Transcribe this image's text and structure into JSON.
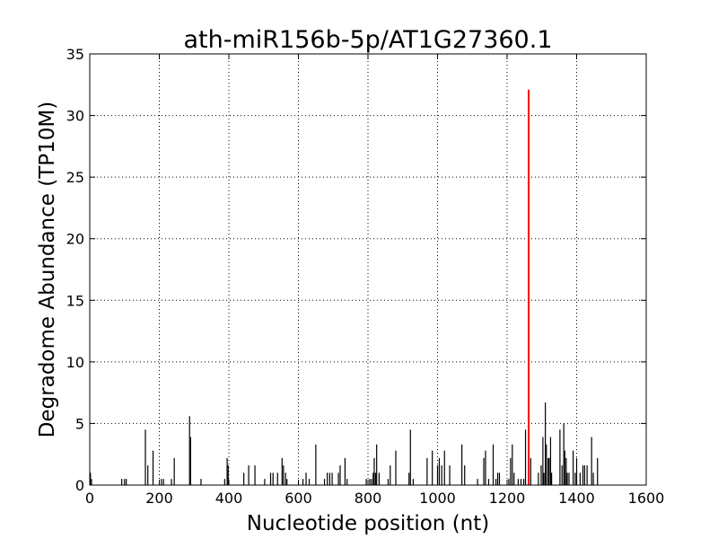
{
  "chart_data": {
    "type": "bar",
    "title": "ath-miR156b-5p/AT1G27360.1",
    "xlabel": "Nucleotide position (nt)",
    "ylabel": "Degradome Abundance (TP10M)",
    "xlim": [
      0,
      1600
    ],
    "ylim": [
      0,
      35
    ],
    "xticks": [
      "0",
      "200",
      "400",
      "600",
      "800",
      "1000",
      "1200",
      "1400",
      "1600"
    ],
    "yticks": [
      "0",
      "5",
      "10",
      "15",
      "20",
      "25",
      "30",
      "35"
    ],
    "grid": true,
    "colors": {
      "bars": "#000000",
      "highlight": "#ff0000",
      "grid": "#000000"
    },
    "series": [
      {
        "points": [
          [
            2,
            1.0
          ],
          [
            5,
            0.5
          ],
          [
            92,
            0.5
          ],
          [
            100,
            0.5
          ],
          [
            105,
            0.5
          ],
          [
            160,
            4.5
          ],
          [
            167,
            1.6
          ],
          [
            182,
            2.8
          ],
          [
            206,
            0.5
          ],
          [
            212,
            0.5
          ],
          [
            235,
            0.5
          ],
          [
            243,
            2.2
          ],
          [
            287,
            5.6
          ],
          [
            290,
            3.9
          ],
          [
            320,
            0.5
          ],
          [
            388,
            0.5
          ],
          [
            395,
            2.2
          ],
          [
            398,
            1.6
          ],
          [
            443,
            1.0
          ],
          [
            457,
            1.6
          ],
          [
            475,
            1.6
          ],
          [
            503,
            0.5
          ],
          [
            520,
            1.0
          ],
          [
            527,
            1.0
          ],
          [
            540,
            1.0
          ],
          [
            553,
            2.2
          ],
          [
            557,
            1.6
          ],
          [
            563,
            1.0
          ],
          [
            567,
            0.5
          ],
          [
            613,
            0.5
          ],
          [
            622,
            1.0
          ],
          [
            631,
            0.5
          ],
          [
            650,
            3.3
          ],
          [
            675,
            0.5
          ],
          [
            683,
            1.0
          ],
          [
            690,
            1.0
          ],
          [
            697,
            1.0
          ],
          [
            715,
            1.0
          ],
          [
            720,
            1.6
          ],
          [
            734,
            2.2
          ],
          [
            740,
            0.5
          ],
          [
            795,
            0.5
          ],
          [
            805,
            0.5
          ],
          [
            810,
            0.5
          ],
          [
            815,
            1.0
          ],
          [
            818,
            2.2
          ],
          [
            822,
            1.0
          ],
          [
            825,
            3.3
          ],
          [
            832,
            1.0
          ],
          [
            858,
            0.5
          ],
          [
            864,
            1.6
          ],
          [
            880,
            2.8
          ],
          [
            918,
            1.0
          ],
          [
            922,
            4.5
          ],
          [
            930,
            0.5
          ],
          [
            970,
            2.2
          ],
          [
            985,
            2.8
          ],
          [
            1000,
            1.6
          ],
          [
            1005,
            2.2
          ],
          [
            1012,
            1.6
          ],
          [
            1020,
            2.8
          ],
          [
            1035,
            1.6
          ],
          [
            1070,
            3.3
          ],
          [
            1078,
            1.6
          ],
          [
            1115,
            0.5
          ],
          [
            1133,
            2.2
          ],
          [
            1138,
            2.8
          ],
          [
            1147,
            0.5
          ],
          [
            1160,
            3.3
          ],
          [
            1168,
            0.5
          ],
          [
            1173,
            1.0
          ],
          [
            1178,
            1.0
          ],
          [
            1205,
            0.5
          ],
          [
            1210,
            2.2
          ],
          [
            1215,
            3.3
          ],
          [
            1220,
            1.0
          ],
          [
            1232,
            0.5
          ],
          [
            1240,
            0.5
          ],
          [
            1248,
            0.5
          ],
          [
            1253,
            4.5
          ],
          [
            1268,
            2.2
          ],
          [
            1290,
            1.0
          ],
          [
            1298,
            1.6
          ],
          [
            1303,
            3.9
          ],
          [
            1306,
            1.0
          ],
          [
            1310,
            6.7
          ],
          [
            1313,
            3.3
          ],
          [
            1318,
            2.2
          ],
          [
            1321,
            2.2
          ],
          [
            1325,
            3.9
          ],
          [
            1328,
            1.0
          ],
          [
            1352,
            4.5
          ],
          [
            1358,
            1.6
          ],
          [
            1363,
            5.0
          ],
          [
            1366,
            2.8
          ],
          [
            1370,
            2.2
          ],
          [
            1373,
            1.0
          ],
          [
            1378,
            1.0
          ],
          [
            1390,
            2.8
          ],
          [
            1396,
            1.0
          ],
          [
            1400,
            2.2
          ],
          [
            1410,
            1.0
          ],
          [
            1418,
            1.6
          ],
          [
            1423,
            1.6
          ],
          [
            1430,
            1.6
          ],
          [
            1443,
            3.9
          ],
          [
            1448,
            1.0
          ],
          [
            1460,
            2.2
          ]
        ]
      },
      {
        "highlight": true,
        "points": [
          [
            1262,
            32.1
          ]
        ]
      }
    ]
  }
}
